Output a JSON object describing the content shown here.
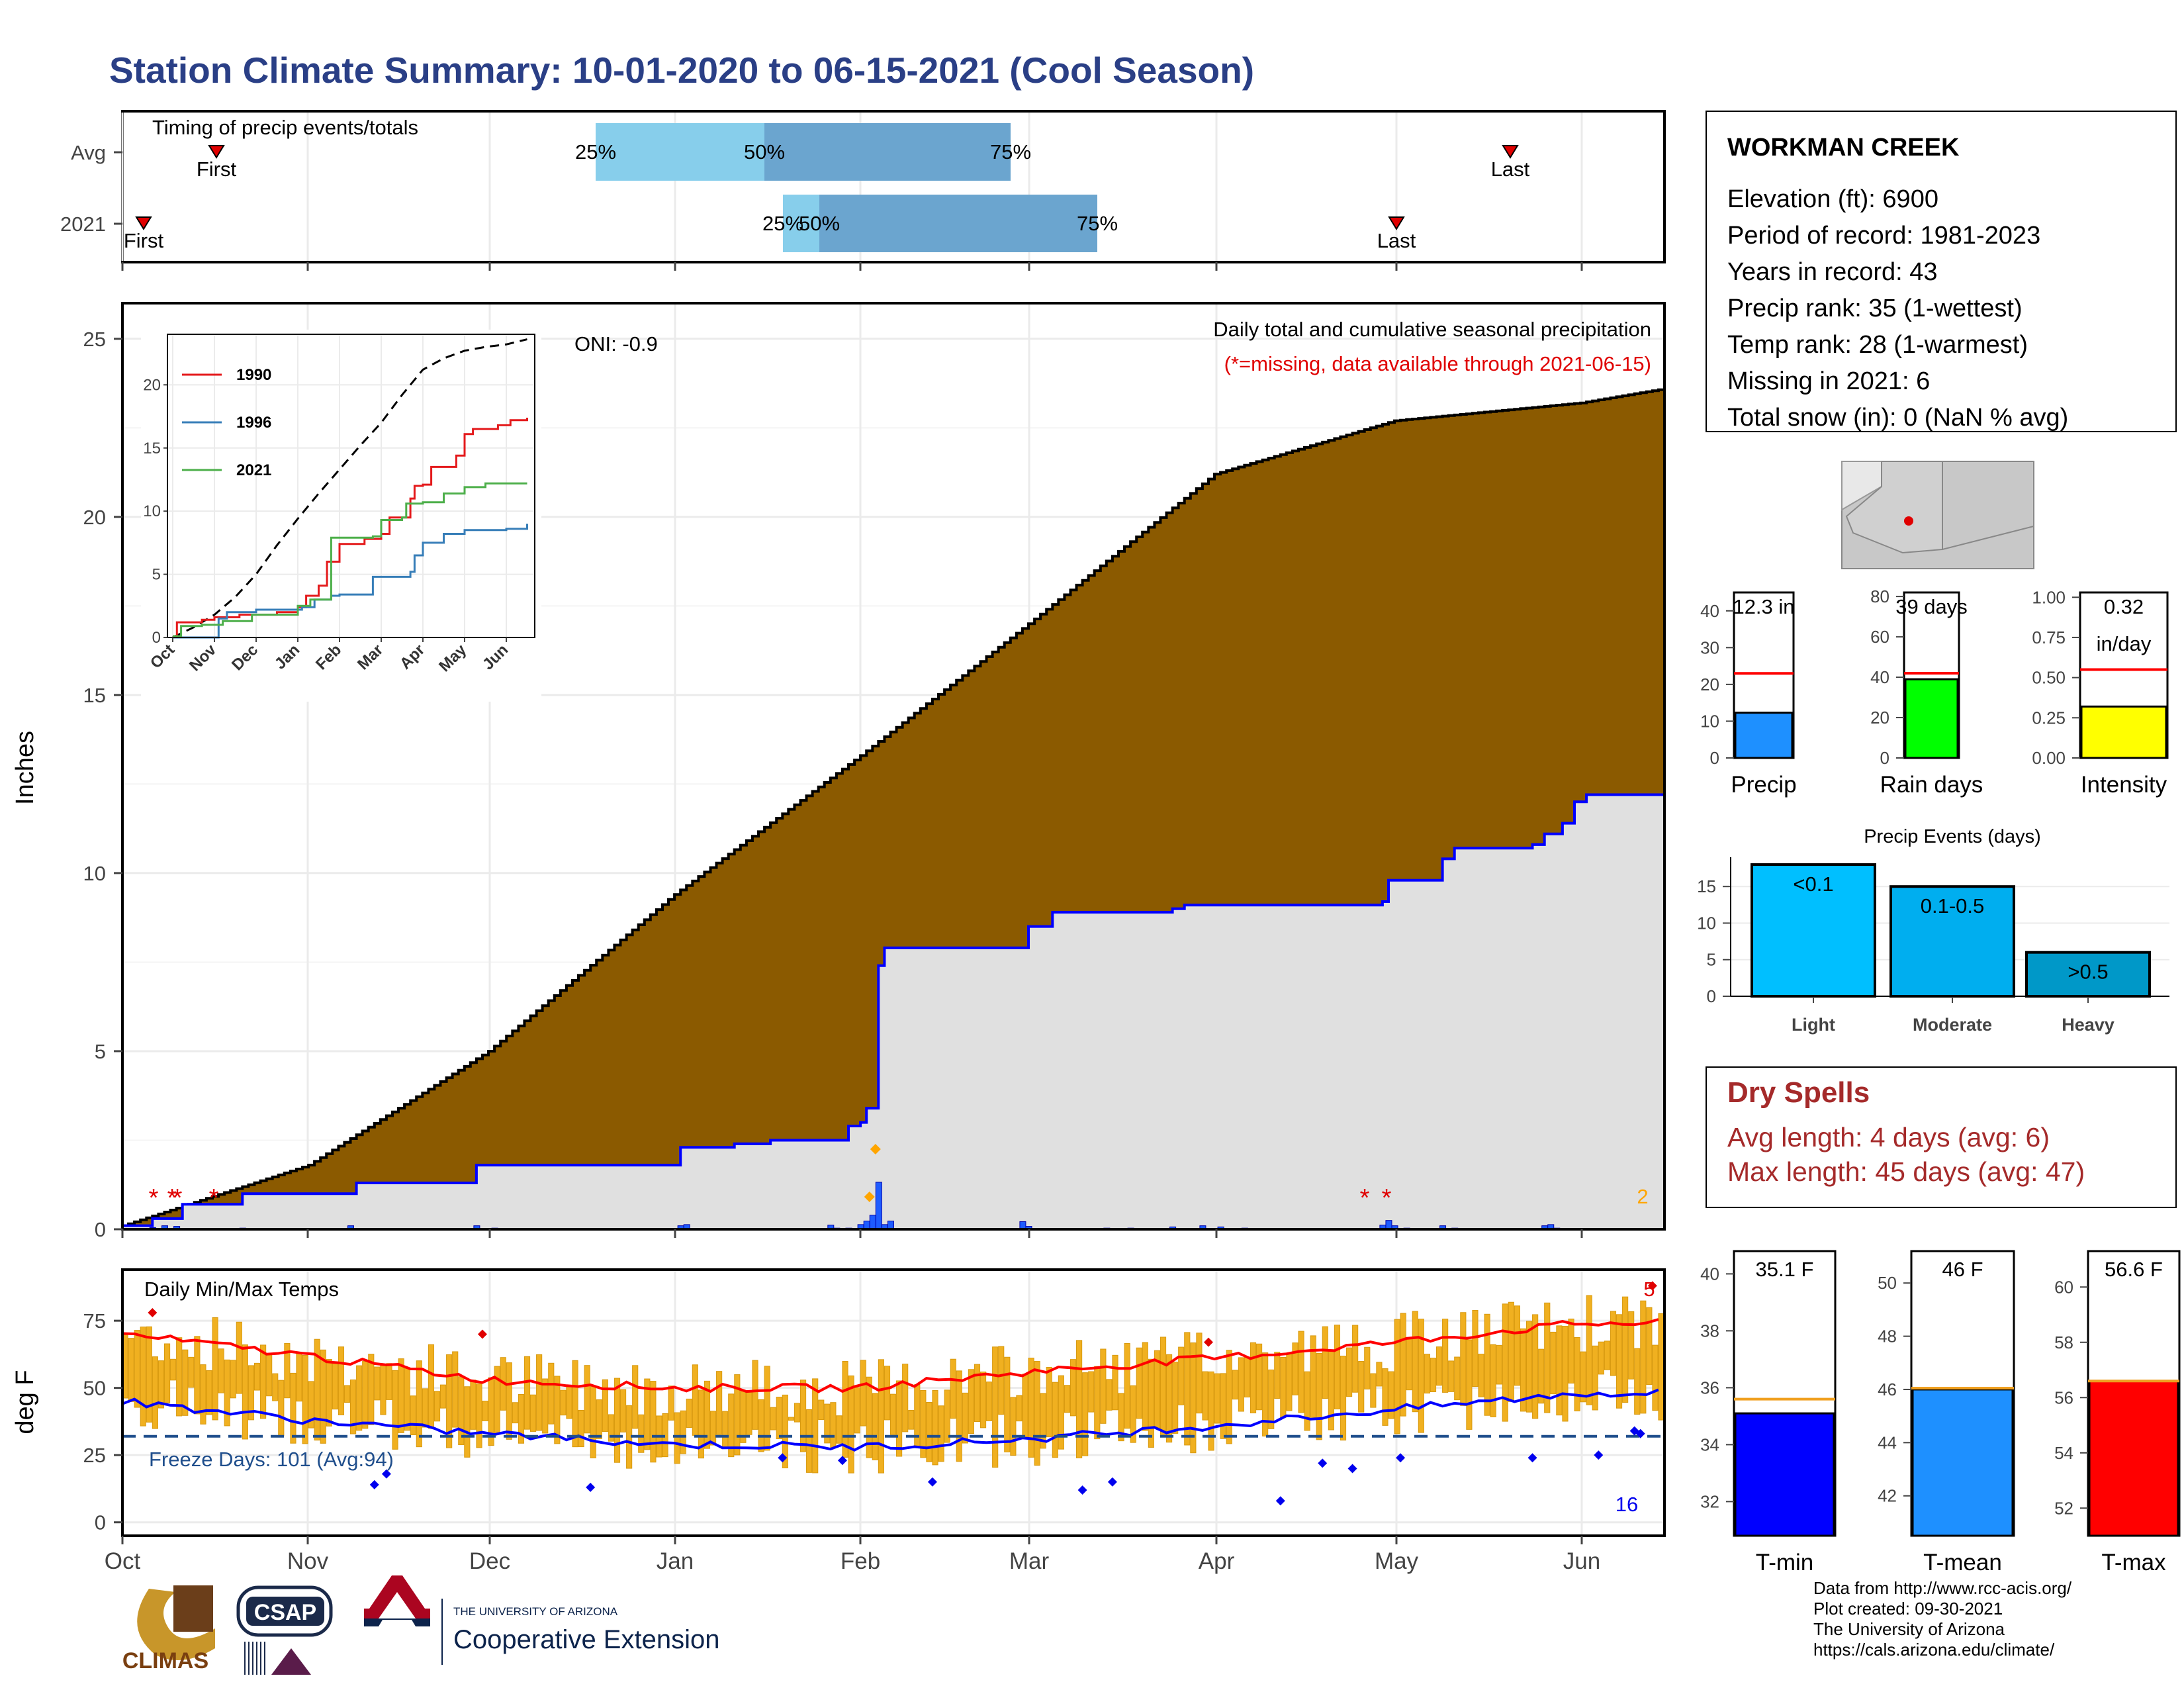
{
  "title": "Station Climate Summary: 10-01-2020 to 06-15-2021 (Cool Season)",
  "colors": {
    "title": "#2a3f86",
    "dry_spells": "#a52a2a",
    "cum_fill": "#8b5a00",
    "current_fill": "#e0e0e0",
    "line_current": "#0000ff"
  },
  "timing": {
    "label": "Timing of precip events/totals",
    "rows": [
      "Avg",
      "2021"
    ],
    "first_label": "First",
    "last_label": "Last",
    "pct_labels": [
      "25%",
      "50%",
      "75%"
    ]
  },
  "main": {
    "ylabel": "Inches",
    "oni": "ONI: -0.9",
    "caption": "Daily total and cumulative seasonal precipitation",
    "missing_note": "(*=missing, data available through 2021-06-15)",
    "max_daily_label": "2",
    "yticks": [
      "0",
      "5",
      "10",
      "15",
      "20",
      "25"
    ]
  },
  "inset": {
    "legend": [
      "1990",
      "1996",
      "2021"
    ],
    "yticks": [
      "0",
      "5",
      "10",
      "15",
      "20"
    ],
    "xticks": [
      "Oct",
      "Nov",
      "Dec",
      "Jan",
      "Feb",
      "Mar",
      "Apr",
      "May",
      "Jun"
    ]
  },
  "temps": {
    "label": "Daily Min/Max Temps",
    "ylabel": "deg F",
    "freeze": "Freeze Days: 101 (Avg:94)",
    "yticks": [
      "0",
      "25",
      "50",
      "75"
    ],
    "count_max": "5",
    "count_min": "16"
  },
  "xaxis": [
    "Oct",
    "Nov",
    "Dec",
    "Jan",
    "Feb",
    "Mar",
    "Apr",
    "May",
    "Jun"
  ],
  "station": {
    "name": "WORKMAN CREEK",
    "lines": [
      "Elevation (ft): 6900",
      "Period of record: 1981-2023",
      "Years in record: 43",
      "Precip rank: 35 (1-wettest)",
      "Temp rank: 28 (1-warmest)",
      "Missing in 2021: 6",
      "Total snow (in): 0 (NaN % avg)"
    ]
  },
  "mini_bars": [
    {
      "label": "Precip",
      "value_text": "12.3 in",
      "value": 12.3,
      "avg": 23.0,
      "ymax": 45,
      "ticks": [
        "0",
        "10",
        "20",
        "30",
        "40"
      ],
      "tickvals": [
        0,
        10,
        20,
        30,
        40
      ],
      "color": "#1e90ff"
    },
    {
      "label": "Rain days",
      "value_text": "39 days",
      "value": 39,
      "avg": 42,
      "ymax": 82,
      "ticks": [
        "0",
        "20",
        "40",
        "60",
        "80"
      ],
      "tickvals": [
        0,
        20,
        40,
        60,
        80
      ],
      "color": "#00ff00"
    },
    {
      "label": "Intensity",
      "value_text": "0.32\nin/day",
      "value": 0.32,
      "avg": 0.55,
      "ymax": 1.03,
      "ticks": [
        "0.00",
        "0.25",
        "0.50",
        "0.75",
        "1.00"
      ],
      "tickvals": [
        0,
        0.25,
        0.5,
        0.75,
        1.0
      ],
      "color": "#ffff00"
    }
  ],
  "events": {
    "title": "Precip Events (days)",
    "categories": [
      "Light",
      "Moderate",
      "Heavy"
    ],
    "bar_labels": [
      "<0.1",
      "0.1-0.5",
      ">0.5"
    ],
    "values": [
      18,
      15,
      6
    ],
    "colors": [
      "#00bfff",
      "#00aeef",
      "#0098c8"
    ],
    "ticks": [
      "0",
      "5",
      "10",
      "15"
    ]
  },
  "dry_spells": {
    "title": "Dry Spells",
    "avg": "Avg length: 4 days (avg: 6)",
    "max": "Max length: 45 days (avg: 47)"
  },
  "temp_bars": [
    {
      "label": "T-min",
      "value_text": "35.1 F",
      "value": 35.1,
      "avg": 35.6,
      "ymin": 30.8,
      "ymax": 40.8,
      "ticks": [
        "32",
        "34",
        "36",
        "38",
        "40"
      ],
      "tickvals": [
        32,
        34,
        36,
        38,
        40
      ],
      "color": "#0000ff"
    },
    {
      "label": "T-mean",
      "value_text": "46 F",
      "value": 46.0,
      "avg": 46.05,
      "ymin": 40.5,
      "ymax": 51.2,
      "ticks": [
        "42",
        "44",
        "46",
        "48",
        "50"
      ],
      "tickvals": [
        42,
        44,
        46,
        48,
        50
      ],
      "color": "#1e90ff"
    },
    {
      "label": "T-max",
      "value_text": "56.6 F",
      "value": 56.6,
      "avg": 56.6,
      "ymin": 51.0,
      "ymax": 61.3,
      "ticks": [
        "52",
        "54",
        "56",
        "58",
        "60"
      ],
      "tickvals": [
        52,
        54,
        56,
        58,
        60
      ],
      "color": "#ff0000"
    }
  ],
  "logos": {
    "climas": "CLIMAS",
    "csap": "CSAP",
    "ua_small": "THE UNIVERSITY OF ARIZONA",
    "ua_big": "Cooperative Extension"
  },
  "footer": [
    "Data from http://www.rcc-acis.org/",
    "Plot created: 09-30-2021",
    "The University of Arizona",
    "https://cals.arizona.edu/climate/"
  ],
  "chart_data": [
    {
      "type": "area",
      "title": "Daily total and cumulative seasonal precipitation",
      "ylabel": "Inches",
      "ylim": [
        0,
        26
      ],
      "x": [
        "Oct",
        "Nov",
        "Dec",
        "Jan",
        "Feb",
        "Mar",
        "Apr",
        "May",
        "Jun",
        "Jun 15"
      ],
      "series": [
        {
          "name": "avg",
          "values": [
            0.1,
            1.8,
            5.0,
            9.4,
            13.3,
            17.0,
            21.2,
            22.7,
            23.2,
            23.6
          ]
        },
        {
          "name": "2021",
          "values": [
            0.1,
            1.0,
            2.5,
            3.0,
            7.9,
            9.3,
            10.7,
            12.3,
            12.3,
            12.3
          ]
        }
      ]
    },
    {
      "type": "line",
      "title": "Daily Min/Max Temps",
      "ylabel": "deg F",
      "x": [
        "Oct",
        "Nov",
        "Dec",
        "Jan",
        "Feb",
        "Mar",
        "Apr",
        "May",
        "Jun"
      ],
      "series": [
        {
          "name": "avg max",
          "values": [
            70,
            62,
            53,
            50,
            50,
            56,
            61,
            67,
            74
          ]
        },
        {
          "name": "avg min",
          "values": [
            45,
            38,
            33,
            29,
            28,
            31,
            36,
            42,
            48
          ]
        }
      ]
    }
  ]
}
